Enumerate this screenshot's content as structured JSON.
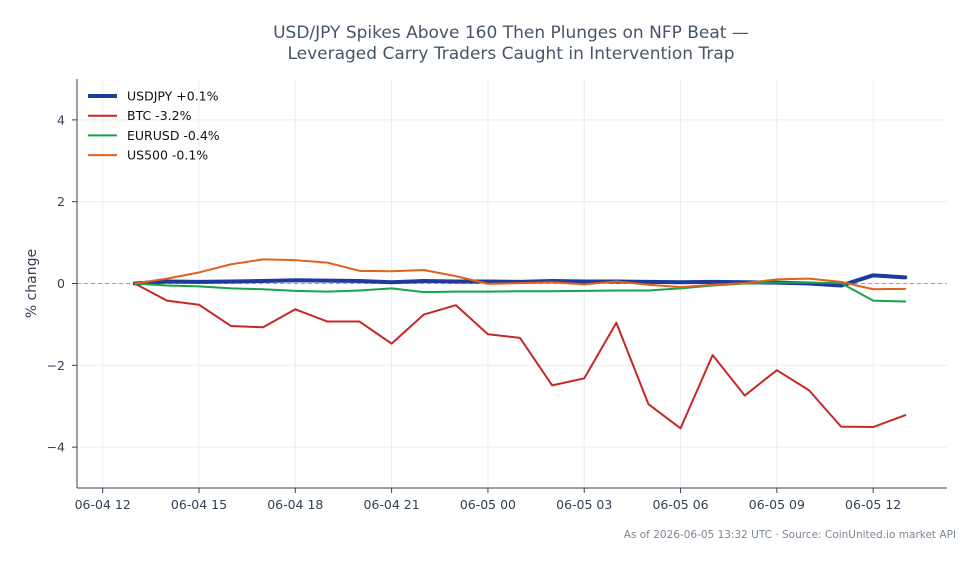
{
  "chart_data": {
    "type": "line",
    "title": [
      "USD/JPY Spikes Above 160 Then Plunges on NFP Beat —",
      "Leveraged Carry Traders Caught in Intervention Trap"
    ],
    "ylabel": "% change",
    "xlabel": "",
    "ylim": [
      -5,
      5
    ],
    "xlim": [
      -0.8,
      26.3
    ],
    "y_ticks": [
      4,
      2,
      0,
      -2,
      -4
    ],
    "y_tick_labels": [
      "4",
      "2",
      "0",
      "−2",
      "−4"
    ],
    "x_ticks": [
      0,
      3,
      6,
      9,
      12,
      15,
      18,
      21,
      24
    ],
    "x_tick_labels": [
      "06-04 12",
      "06-04 15",
      "06-04 18",
      "06-04 21",
      "06-05 00",
      "06-05 03",
      "06-05 06",
      "06-05 09",
      "06-05 12"
    ],
    "x": [
      1,
      2,
      3,
      4,
      5,
      6,
      7,
      8,
      9,
      10,
      11,
      12,
      13,
      14,
      15,
      16,
      17,
      18,
      19,
      20,
      21,
      22,
      23,
      24,
      25
    ],
    "grid": true,
    "zero_line": true,
    "legend_position": "top-left",
    "series": [
      {
        "name": "USDJPY +0.1%",
        "color": "#1e3a9a",
        "width": 4,
        "values": [
          0.0,
          0.05,
          0.04,
          0.05,
          0.06,
          0.08,
          0.07,
          0.06,
          0.03,
          0.06,
          0.05,
          0.05,
          0.04,
          0.06,
          0.05,
          0.05,
          0.04,
          0.03,
          0.04,
          0.03,
          0.02,
          0.0,
          -0.05,
          0.2,
          0.15
        ]
      },
      {
        "name": "BTC -3.2%",
        "color": "#c62828",
        "width": 2,
        "values": [
          0.0,
          -0.42,
          -0.52,
          -1.04,
          -1.07,
          -0.63,
          -0.93,
          -0.93,
          -1.47,
          -0.76,
          -0.53,
          -1.24,
          -1.33,
          -2.49,
          -2.32,
          -0.96,
          -2.95,
          -3.54,
          -1.75,
          -2.74,
          -2.12,
          -2.61,
          -3.5,
          -3.51,
          -3.22
        ]
      },
      {
        "name": "EURUSD -0.4%",
        "color": "#16a34a",
        "width": 2,
        "values": [
          0.0,
          -0.05,
          -0.07,
          -0.12,
          -0.14,
          -0.18,
          -0.2,
          -0.17,
          -0.12,
          -0.21,
          -0.2,
          -0.2,
          -0.19,
          -0.19,
          -0.18,
          -0.17,
          -0.17,
          -0.12,
          -0.05,
          0.0,
          0.02,
          0.02,
          0.01,
          -0.42,
          -0.44
        ]
      },
      {
        "name": "US500 -0.1%",
        "color": "#e0621b",
        "width": 2,
        "values": [
          0.0,
          0.12,
          0.27,
          0.47,
          0.59,
          0.57,
          0.51,
          0.31,
          0.3,
          0.33,
          0.18,
          -0.01,
          0.01,
          0.03,
          -0.02,
          0.05,
          -0.03,
          -0.09,
          -0.03,
          0.01,
          0.1,
          0.12,
          0.04,
          -0.14,
          -0.13
        ]
      }
    ]
  },
  "footer": "As of 2026-06-05 13:32 UTC · Source: CoinUnited.io market API"
}
